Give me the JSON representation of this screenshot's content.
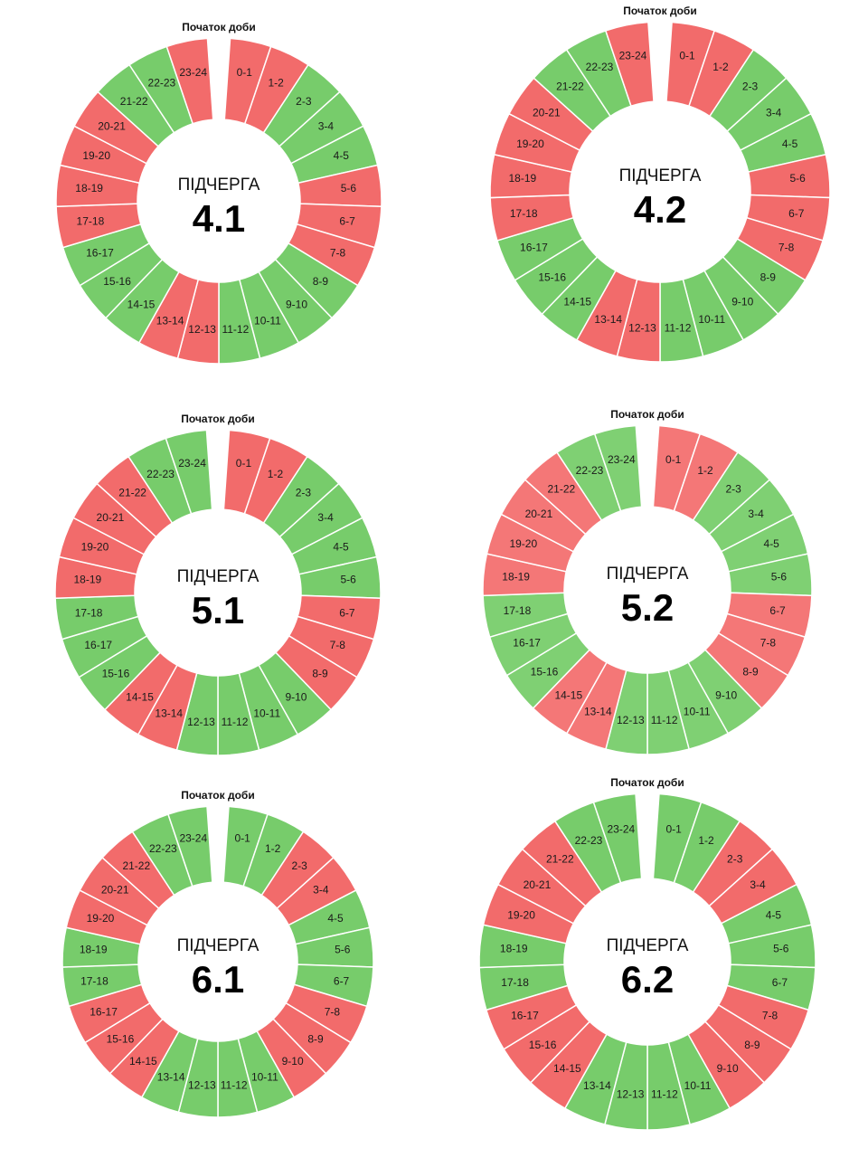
{
  "dials": [
    {
      "title": "Початок доби",
      "label": "ПІДЧЕРГА",
      "number": "4.1",
      "segments": [
        {
          "label": "0-1",
          "color": "#f26b6b"
        },
        {
          "label": "1-2",
          "color": "#f26b6b"
        },
        {
          "label": "2-3",
          "color": "#77cc6b"
        },
        {
          "label": "3-4",
          "color": "#77cc6b"
        },
        {
          "label": "4-5",
          "color": "#77cc6b"
        },
        {
          "label": "5-6",
          "color": "#f26b6b"
        },
        {
          "label": "6-7",
          "color": "#f26b6b"
        },
        {
          "label": "7-8",
          "color": "#f26b6b"
        },
        {
          "label": "8-9",
          "color": "#77cc6b"
        },
        {
          "label": "9-10",
          "color": "#77cc6b"
        },
        {
          "label": "10-11",
          "color": "#77cc6b"
        },
        {
          "label": "11-12",
          "color": "#77cc6b"
        },
        {
          "label": "12-13",
          "color": "#f26b6b"
        },
        {
          "label": "13-14",
          "color": "#f26b6b"
        },
        {
          "label": "14-15",
          "color": "#77cc6b"
        },
        {
          "label": "15-16",
          "color": "#77cc6b"
        },
        {
          "label": "16-17",
          "color": "#77cc6b"
        },
        {
          "label": "17-18",
          "color": "#f26b6b"
        },
        {
          "label": "18-19",
          "color": "#f26b6b"
        },
        {
          "label": "19-20",
          "color": "#f26b6b"
        },
        {
          "label": "20-21",
          "color": "#f26b6b"
        },
        {
          "label": "21-22",
          "color": "#77cc6b"
        },
        {
          "label": "22-23",
          "color": "#77cc6b"
        },
        {
          "label": "23-24",
          "color": "#f26b6b"
        }
      ]
    },
    {
      "title": "Початок доби",
      "label": "ПІДЧЕРГА",
      "number": "4.2",
      "segments": [
        {
          "label": "0-1",
          "color": "#f26b6b"
        },
        {
          "label": "1-2",
          "color": "#f26b6b"
        },
        {
          "label": "2-3",
          "color": "#77cc6b"
        },
        {
          "label": "3-4",
          "color": "#77cc6b"
        },
        {
          "label": "4-5",
          "color": "#77cc6b"
        },
        {
          "label": "5-6",
          "color": "#f26b6b"
        },
        {
          "label": "6-7",
          "color": "#f26b6b"
        },
        {
          "label": "7-8",
          "color": "#f26b6b"
        },
        {
          "label": "8-9",
          "color": "#77cc6b"
        },
        {
          "label": "9-10",
          "color": "#77cc6b"
        },
        {
          "label": "10-11",
          "color": "#77cc6b"
        },
        {
          "label": "11-12",
          "color": "#77cc6b"
        },
        {
          "label": "12-13",
          "color": "#f26b6b"
        },
        {
          "label": "13-14",
          "color": "#f26b6b"
        },
        {
          "label": "14-15",
          "color": "#77cc6b"
        },
        {
          "label": "15-16",
          "color": "#77cc6b"
        },
        {
          "label": "16-17",
          "color": "#77cc6b"
        },
        {
          "label": "17-18",
          "color": "#f26b6b"
        },
        {
          "label": "18-19",
          "color": "#f26b6b"
        },
        {
          "label": "19-20",
          "color": "#f26b6b"
        },
        {
          "label": "20-21",
          "color": "#f26b6b"
        },
        {
          "label": "21-22",
          "color": "#77cc6b"
        },
        {
          "label": "22-23",
          "color": "#77cc6b"
        },
        {
          "label": "23-24",
          "color": "#f26b6b"
        }
      ]
    },
    {
      "title": "Початок доби",
      "label": "ПІДЧЕРГА",
      "number": "5.1",
      "segments": [
        {
          "label": "0-1",
          "color": "#f26b6b"
        },
        {
          "label": "1-2",
          "color": "#f26b6b"
        },
        {
          "label": "2-3",
          "color": "#77cc6b"
        },
        {
          "label": "3-4",
          "color": "#77cc6b"
        },
        {
          "label": "4-5",
          "color": "#77cc6b"
        },
        {
          "label": "5-6",
          "color": "#77cc6b"
        },
        {
          "label": "6-7",
          "color": "#f26b6b"
        },
        {
          "label": "7-8",
          "color": "#f26b6b"
        },
        {
          "label": "8-9",
          "color": "#f26b6b"
        },
        {
          "label": "9-10",
          "color": "#77cc6b"
        },
        {
          "label": "10-11",
          "color": "#77cc6b"
        },
        {
          "label": "11-12",
          "color": "#77cc6b"
        },
        {
          "label": "12-13",
          "color": "#77cc6b"
        },
        {
          "label": "13-14",
          "color": "#f26b6b"
        },
        {
          "label": "14-15",
          "color": "#f26b6b"
        },
        {
          "label": "15-16",
          "color": "#77cc6b"
        },
        {
          "label": "16-17",
          "color": "#77cc6b"
        },
        {
          "label": "17-18",
          "color": "#77cc6b"
        },
        {
          "label": "18-19",
          "color": "#f26b6b"
        },
        {
          "label": "19-20",
          "color": "#f26b6b"
        },
        {
          "label": "20-21",
          "color": "#f26b6b"
        },
        {
          "label": "21-22",
          "color": "#f26b6b"
        },
        {
          "label": "22-23",
          "color": "#77cc6b"
        },
        {
          "label": "23-24",
          "color": "#77cc6b"
        }
      ]
    },
    {
      "title": "Початок доби",
      "label": "ПІДЧЕРГА",
      "number": "5.2",
      "segments": [
        {
          "label": "0-1",
          "color": "#f47777"
        },
        {
          "label": "1-2",
          "color": "#f47777"
        },
        {
          "label": "2-3",
          "color": "#7fd073"
        },
        {
          "label": "3-4",
          "color": "#7fd073"
        },
        {
          "label": "4-5",
          "color": "#7fd073"
        },
        {
          "label": "5-6",
          "color": "#7fd073"
        },
        {
          "label": "6-7",
          "color": "#f47777"
        },
        {
          "label": "7-8",
          "color": "#f47777"
        },
        {
          "label": "8-9",
          "color": "#f47777"
        },
        {
          "label": "9-10",
          "color": "#7fd073"
        },
        {
          "label": "10-11",
          "color": "#7fd073"
        },
        {
          "label": "11-12",
          "color": "#7fd073"
        },
        {
          "label": "12-13",
          "color": "#7fd073"
        },
        {
          "label": "13-14",
          "color": "#f47777"
        },
        {
          "label": "14-15",
          "color": "#f47777"
        },
        {
          "label": "15-16",
          "color": "#7fd073"
        },
        {
          "label": "16-17",
          "color": "#7fd073"
        },
        {
          "label": "17-18",
          "color": "#7fd073"
        },
        {
          "label": "18-19",
          "color": "#f47777"
        },
        {
          "label": "19-20",
          "color": "#f47777"
        },
        {
          "label": "20-21",
          "color": "#f47777"
        },
        {
          "label": "21-22",
          "color": "#f47777"
        },
        {
          "label": "22-23",
          "color": "#7fd073"
        },
        {
          "label": "23-24",
          "color": "#7fd073"
        }
      ]
    },
    {
      "title": "Початок доби",
      "label": "ПІДЧЕРГА",
      "number": "6.1",
      "segments": [
        {
          "label": "0-1",
          "color": "#77cc6b"
        },
        {
          "label": "1-2",
          "color": "#77cc6b"
        },
        {
          "label": "2-3",
          "color": "#f26b6b"
        },
        {
          "label": "3-4",
          "color": "#f26b6b"
        },
        {
          "label": "4-5",
          "color": "#77cc6b"
        },
        {
          "label": "5-6",
          "color": "#77cc6b"
        },
        {
          "label": "6-7",
          "color": "#77cc6b"
        },
        {
          "label": "7-8",
          "color": "#f26b6b"
        },
        {
          "label": "8-9",
          "color": "#f26b6b"
        },
        {
          "label": "9-10",
          "color": "#f26b6b"
        },
        {
          "label": "10-11",
          "color": "#77cc6b"
        },
        {
          "label": "11-12",
          "color": "#77cc6b"
        },
        {
          "label": "12-13",
          "color": "#77cc6b"
        },
        {
          "label": "13-14",
          "color": "#77cc6b"
        },
        {
          "label": "14-15",
          "color": "#f26b6b"
        },
        {
          "label": "15-16",
          "color": "#f26b6b"
        },
        {
          "label": "16-17",
          "color": "#f26b6b"
        },
        {
          "label": "17-18",
          "color": "#77cc6b"
        },
        {
          "label": "18-19",
          "color": "#77cc6b"
        },
        {
          "label": "19-20",
          "color": "#f26b6b"
        },
        {
          "label": "20-21",
          "color": "#f26b6b"
        },
        {
          "label": "21-22",
          "color": "#f26b6b"
        },
        {
          "label": "22-23",
          "color": "#77cc6b"
        },
        {
          "label": "23-24",
          "color": "#77cc6b"
        }
      ]
    },
    {
      "title": "Початок доби",
      "label": "ПІДЧЕРГА",
      "number": "6.2",
      "segments": [
        {
          "label": "0-1",
          "color": "#77cc6b"
        },
        {
          "label": "1-2",
          "color": "#77cc6b"
        },
        {
          "label": "2-3",
          "color": "#f26b6b"
        },
        {
          "label": "3-4",
          "color": "#f26b6b"
        },
        {
          "label": "4-5",
          "color": "#77cc6b"
        },
        {
          "label": "5-6",
          "color": "#77cc6b"
        },
        {
          "label": "6-7",
          "color": "#77cc6b"
        },
        {
          "label": "7-8",
          "color": "#f26b6b"
        },
        {
          "label": "8-9",
          "color": "#f26b6b"
        },
        {
          "label": "9-10",
          "color": "#f26b6b"
        },
        {
          "label": "10-11",
          "color": "#77cc6b"
        },
        {
          "label": "11-12",
          "color": "#77cc6b"
        },
        {
          "label": "12-13",
          "color": "#77cc6b"
        },
        {
          "label": "13-14",
          "color": "#77cc6b"
        },
        {
          "label": "14-15",
          "color": "#f26b6b"
        },
        {
          "label": "15-16",
          "color": "#f26b6b"
        },
        {
          "label": "16-17",
          "color": "#f26b6b"
        },
        {
          "label": "17-18",
          "color": "#77cc6b"
        },
        {
          "label": "18-19",
          "color": "#77cc6b"
        },
        {
          "label": "19-20",
          "color": "#f26b6b"
        },
        {
          "label": "20-21",
          "color": "#f26b6b"
        },
        {
          "label": "21-22",
          "color": "#f26b6b"
        },
        {
          "label": "22-23",
          "color": "#77cc6b"
        },
        {
          "label": "23-24",
          "color": "#77cc6b"
        }
      ]
    }
  ]
}
